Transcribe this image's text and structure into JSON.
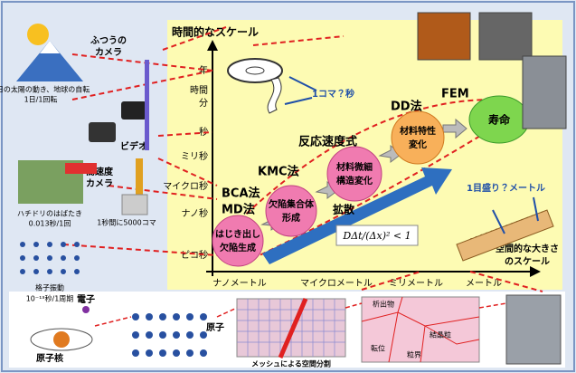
{
  "axes": {
    "y_title": "時間的なスケール",
    "y_labels": [
      "年",
      "時間",
      "分",
      "秒",
      "ミリ秒",
      "マイクロ秒",
      "ナノ秒",
      "ピコ秒"
    ],
    "x_labels": [
      "ナノメートル",
      "マイクロメートル",
      "ミリメートル",
      "メートル"
    ],
    "x_title": [
      "空間的な大きさ",
      "のスケール"
    ]
  },
  "left_panel": {
    "sun": [
      "1日の太陽の動き、地球の自転",
      "1日/1回転"
    ],
    "camera": [
      "ふつうの",
      "カメラ"
    ],
    "video": "ビデオ",
    "high_speed_camera": [
      "高速度",
      "カメラ"
    ],
    "frame_rate": "1秒間に5000コマ",
    "hummingbird": [
      "ハチドリのはばたき",
      "0.013秒/1回"
    ],
    "lattice": [
      "格子振動",
      "10⁻¹³秒/1周期"
    ]
  },
  "frame_question": "1コマ？秒",
  "scale_question": "1目盛り？メートル",
  "methods": [
    "BCA法",
    "MD法",
    "KMC法",
    "反応速度式",
    "DD法",
    "FEM"
  ],
  "stages": [
    [
      "はじき出し",
      "欠陥生成"
    ],
    [
      "欠陥集合体",
      "形成"
    ],
    [
      "材料微細",
      "構造変化"
    ],
    [
      "材料特性",
      "変化"
    ],
    [
      "寿命"
    ]
  ],
  "diffusion": "拡散",
  "formula": "DΔt/(Δx)² < 1",
  "bottom": {
    "electron": "電子",
    "nucleus": "原子核",
    "atom": "原子",
    "mesh": "メッシュによる空間分割",
    "grain_labels": [
      "析出物",
      "結晶粒",
      "転位",
      "粒界"
    ]
  }
}
